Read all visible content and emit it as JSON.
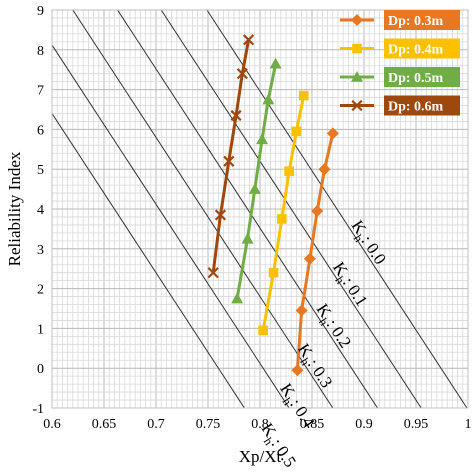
{
  "chart_data": {
    "type": "line",
    "xlabel": "Xp/Xt",
    "ylabel": "Reliability Index",
    "xlim": [
      0.6,
      1.0
    ],
    "ylim": [
      -1,
      9
    ],
    "xticks": [
      "0.6",
      "0.65",
      "0.7",
      "0.75",
      "0.8",
      "0.85",
      "0.9",
      "0.95",
      "1"
    ],
    "yticks": [
      "-1",
      "0",
      "1",
      "2",
      "3",
      "4",
      "5",
      "6",
      "7",
      "8",
      "9"
    ],
    "grid": true,
    "legend_position": "top-right",
    "series": [
      {
        "name": "Dp: 0.3m",
        "color": "#E87722",
        "marker": "diamond",
        "x": [
          0.836,
          0.84,
          0.848,
          0.855,
          0.862,
          0.87
        ],
        "y": [
          -0.05,
          1.45,
          2.75,
          3.95,
          5.0,
          5.9
        ]
      },
      {
        "name": "Dp: 0.4m",
        "color": "#FFC000",
        "marker": "square",
        "x": [
          0.803,
          0.813,
          0.821,
          0.828,
          0.835,
          0.842
        ],
        "y": [
          0.95,
          2.4,
          3.75,
          4.95,
          5.95,
          6.85
        ]
      },
      {
        "name": "Dp: 0.5m",
        "color": "#70AD47",
        "marker": "triangle",
        "x": [
          0.778,
          0.788,
          0.795,
          0.802,
          0.808,
          0.815
        ],
        "y": [
          1.75,
          3.25,
          4.5,
          5.75,
          6.75,
          7.65
        ]
      },
      {
        "name": "Dp: 0.6m",
        "color": "#9E480E",
        "marker": "x",
        "x": [
          0.755,
          0.762,
          0.77,
          0.777,
          0.783,
          0.789
        ],
        "y": [
          2.4,
          3.85,
          5.2,
          6.35,
          7.4,
          8.25
        ]
      }
    ],
    "kh_lines": [
      {
        "label": "0.0",
        "x0": 0.749,
        "x1": 0.999
      },
      {
        "label": "0.1",
        "x0": 0.705,
        "x1": 0.955
      },
      {
        "label": "0.2",
        "x0": 0.663,
        "x1": 0.913
      },
      {
        "label": "0.3",
        "x0": 0.62,
        "x1": 0.87
      },
      {
        "label": "0.4",
        "x0": 0.578,
        "x1": 0.828
      },
      {
        "label": "0.5",
        "x0": 0.535,
        "x1": 0.785
      }
    ],
    "kh_prefix": "K",
    "kh_subscript": "h",
    "kh_sep": ": "
  }
}
